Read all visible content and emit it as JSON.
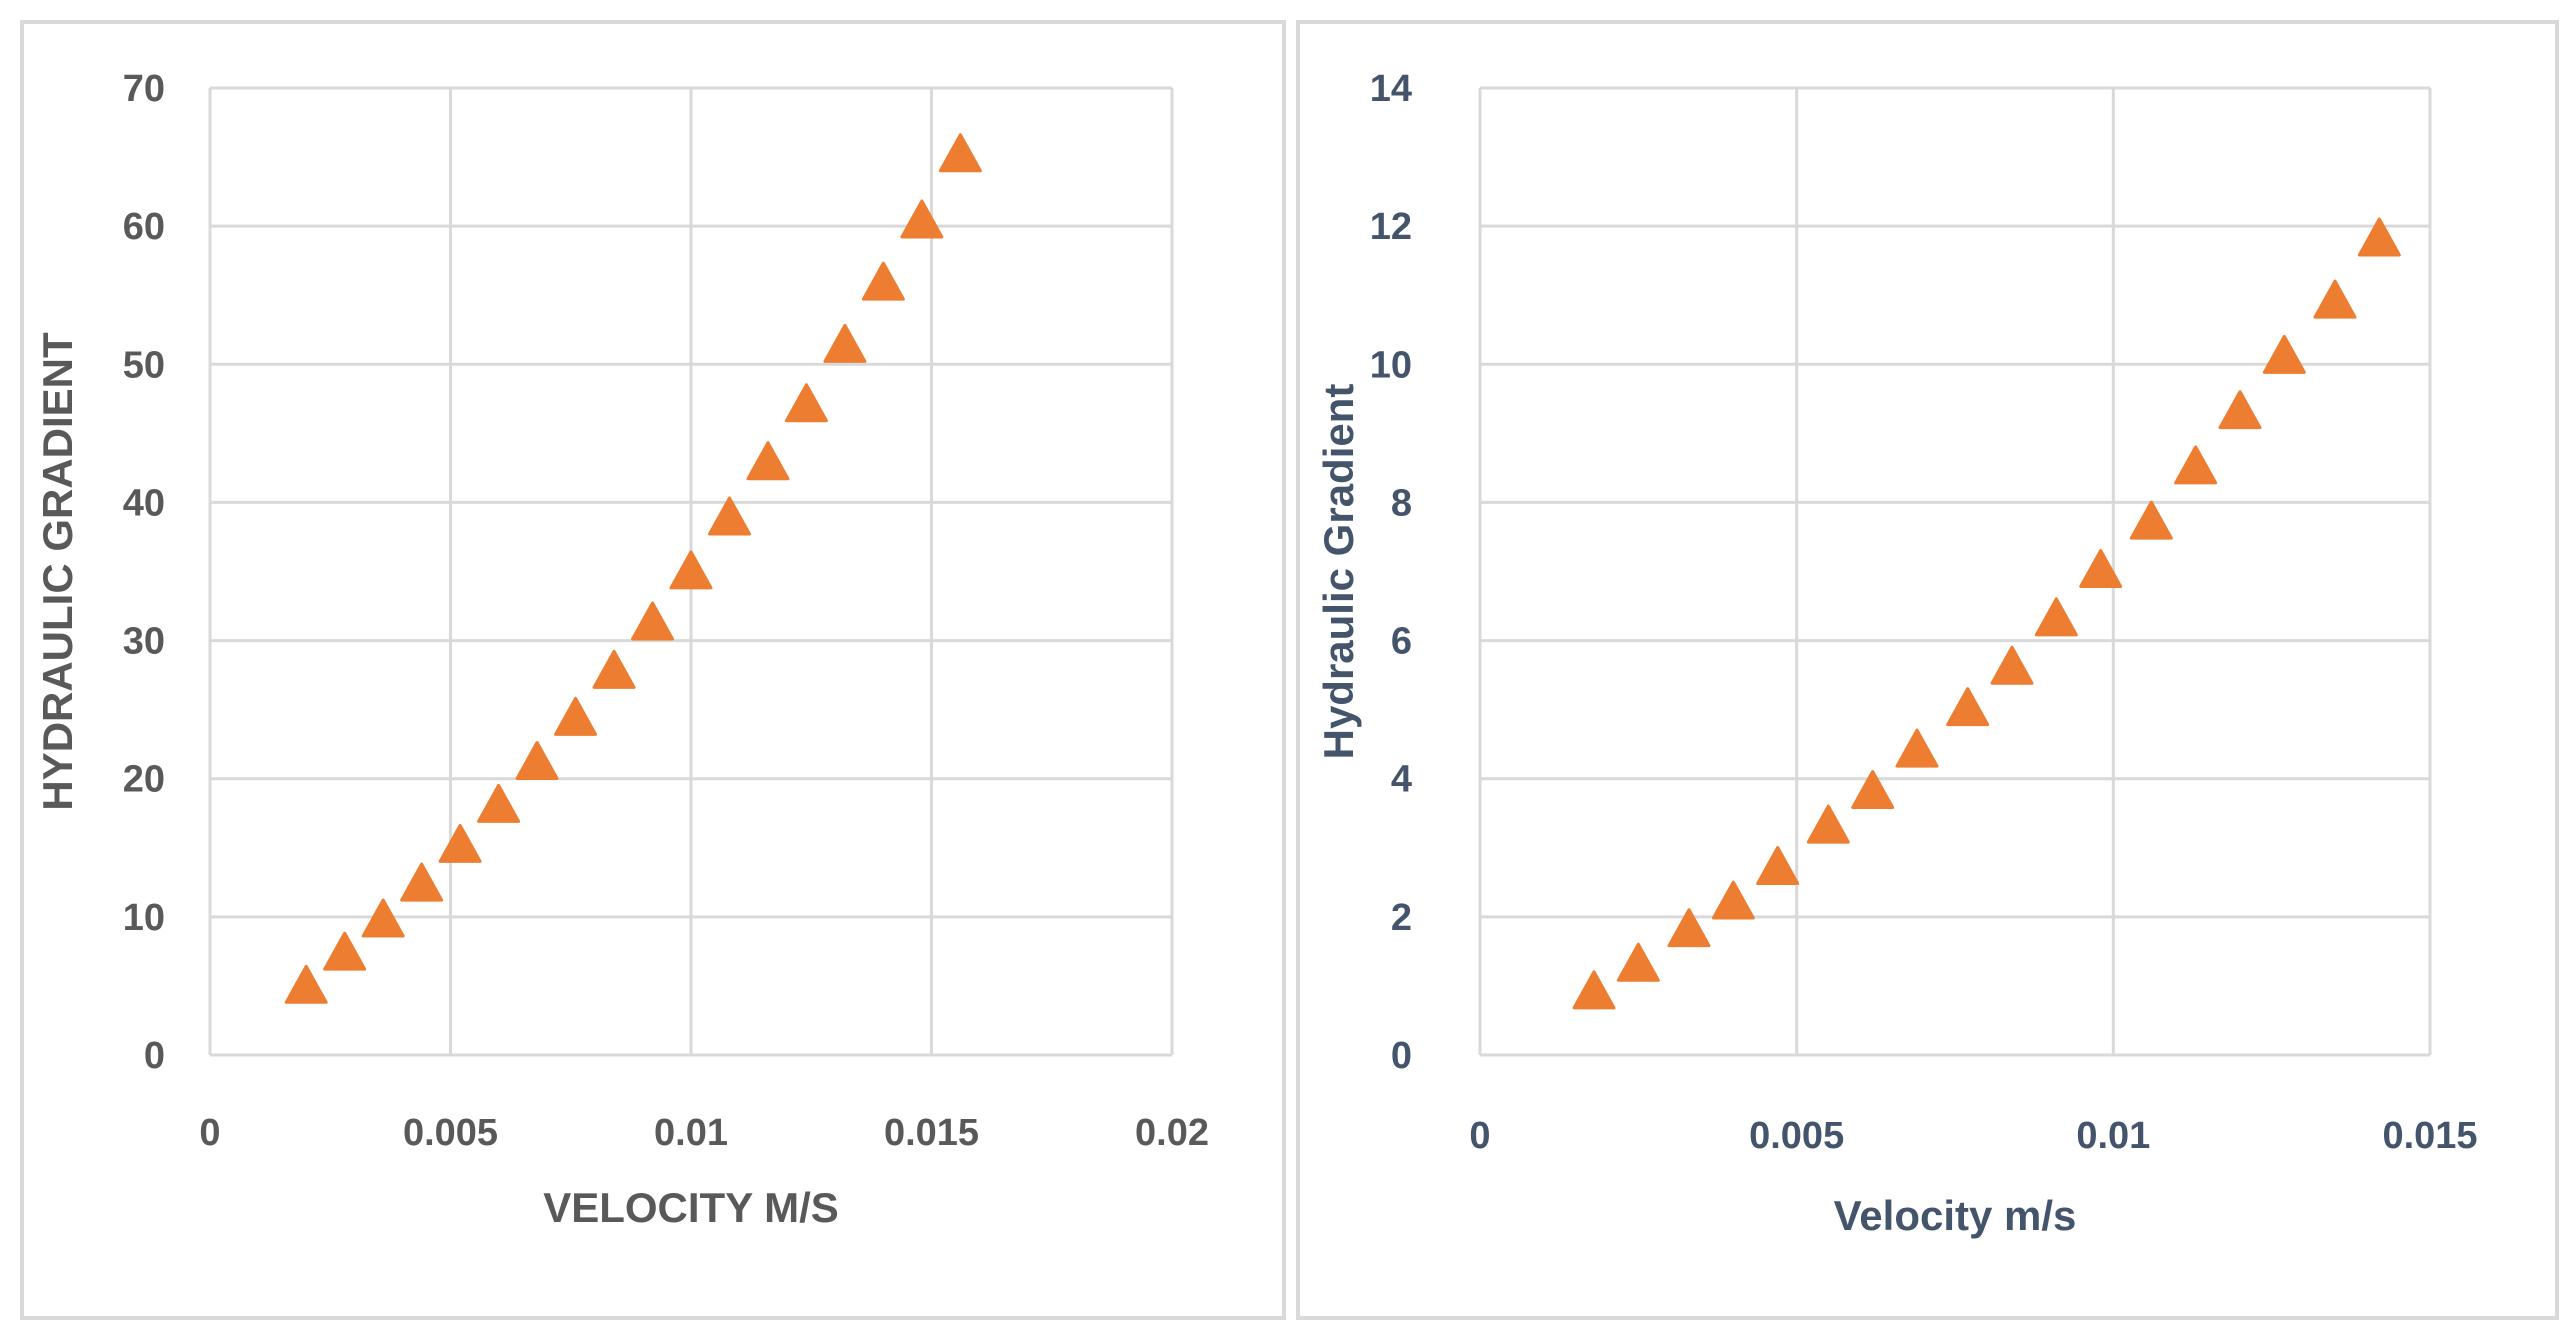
{
  "chart_data": [
    {
      "type": "scatter",
      "title": "",
      "xlabel": "VELOCITY M/S",
      "ylabel": "HYDRAULIC GRADIENT",
      "xlim": [
        0,
        0.02
      ],
      "ylim": [
        0,
        70
      ],
      "x_ticks": [
        "0",
        "0.005",
        "0.01",
        "0.015",
        "0.02"
      ],
      "x_tick_values": [
        0,
        0.005,
        0.01,
        0.015,
        0.02
      ],
      "y_ticks": [
        "0",
        "10",
        "20",
        "30",
        "40",
        "50",
        "60",
        "70"
      ],
      "y_tick_values": [
        0,
        10,
        20,
        30,
        40,
        50,
        60,
        70
      ],
      "grid": true,
      "marker": "triangle",
      "marker_color": "#ed7d31",
      "text_color": "#595959",
      "series": [
        {
          "name": "Hydraulic gradient",
          "x": [
            0.002,
            0.0028,
            0.0036,
            0.0044,
            0.0052,
            0.006,
            0.0068,
            0.0076,
            0.0084,
            0.0092,
            0.01,
            0.0108,
            0.0116,
            0.0124,
            0.0132,
            0.014,
            0.0148,
            0.0156
          ],
          "y": [
            4.9,
            7.3,
            9.7,
            12.3,
            15.1,
            18.0,
            21.1,
            24.3,
            27.7,
            31.2,
            34.9,
            38.8,
            42.8,
            47.0,
            51.3,
            55.8,
            60.3,
            65.1
          ]
        }
      ]
    },
    {
      "type": "scatter",
      "title": "",
      "xlabel": "Velocity m/s",
      "ylabel": "Hydraulic Gradient",
      "xlim": [
        0,
        0.015
      ],
      "ylim": [
        0,
        14
      ],
      "x_ticks": [
        "0",
        "0.005",
        "0.01",
        "0.015"
      ],
      "x_tick_values": [
        0,
        0.005,
        0.01,
        0.015
      ],
      "y_ticks": [
        "0",
        "2",
        "4",
        "6",
        "8",
        "10",
        "12",
        "14"
      ],
      "y_tick_values": [
        0,
        2,
        4,
        6,
        8,
        10,
        12,
        14
      ],
      "grid": true,
      "marker": "triangle",
      "marker_color": "#ed7d31",
      "text_color": "#44546a",
      "series": [
        {
          "name": "Hydraulic gradient",
          "x": [
            0.0018,
            0.0025,
            0.0033,
            0.004,
            0.0047,
            0.0055,
            0.0062,
            0.0069,
            0.0077,
            0.0084,
            0.0091,
            0.0098,
            0.0106,
            0.0113,
            0.012,
            0.0127,
            0.0135,
            0.0142
          ],
          "y": [
            0.9,
            1.3,
            1.8,
            2.2,
            2.7,
            3.3,
            3.8,
            4.4,
            5.0,
            5.6,
            6.3,
            7.0,
            7.7,
            8.5,
            9.3,
            10.1,
            10.9,
            11.8
          ]
        }
      ]
    }
  ]
}
